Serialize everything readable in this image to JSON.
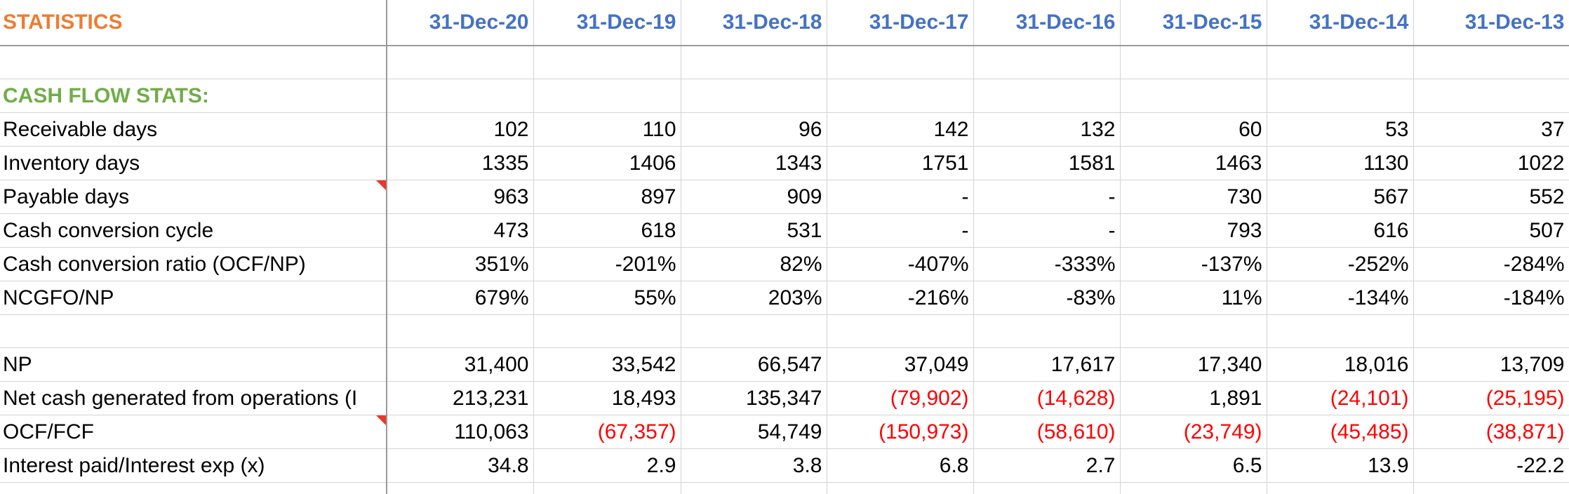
{
  "sheet": {
    "title": "STATISTICS",
    "dates": [
      "31-Dec-20",
      "31-Dec-19",
      "31-Dec-18",
      "31-Dec-17",
      "31-Dec-16",
      "31-Dec-15",
      "31-Dec-14",
      "31-Dec-13"
    ],
    "section_title": "CASH FLOW STATS:",
    "rows": [
      {
        "label": "Receivable days",
        "values": [
          "102",
          "110",
          "96",
          "142",
          "132",
          "60",
          "53",
          "37"
        ]
      },
      {
        "label": "Inventory days",
        "values": [
          "1335",
          "1406",
          "1343",
          "1751",
          "1581",
          "1463",
          "1130",
          "1022"
        ]
      },
      {
        "label": "Payable days",
        "values": [
          "963",
          "897",
          "909",
          "-",
          "-",
          "730",
          "567",
          "552"
        ]
      },
      {
        "label": "Cash conversion cycle",
        "values": [
          "473",
          "618",
          "531",
          "-",
          "-",
          "793",
          "616",
          "507"
        ]
      },
      {
        "label": "Cash conversion ratio (OCF/NP)",
        "values": [
          "351%",
          "-201%",
          "82%",
          "-407%",
          "-333%",
          "-137%",
          "-252%",
          "-284%"
        ]
      },
      {
        "label": "NCGFO/NP",
        "values": [
          "679%",
          "55%",
          "203%",
          "-216%",
          "-83%",
          "11%",
          "-134%",
          "-184%"
        ]
      },
      {
        "label": "NP",
        "values": [
          "31,400",
          "33,542",
          "66,547",
          "37,049",
          "17,617",
          "17,340",
          "18,016",
          "13,709"
        ]
      },
      {
        "label": "Net cash generated from operations (I",
        "values": [
          "213,231",
          "18,493",
          "135,347",
          "(79,902)",
          "(14,628)",
          "1,891",
          "(24,101)",
          "(25,195)"
        ]
      },
      {
        "label": "OCF/FCF",
        "values": [
          "110,063",
          "(67,357)",
          "54,749",
          "(150,973)",
          "(58,610)",
          "(23,749)",
          "(45,485)",
          "(38,871)"
        ]
      },
      {
        "label": "Interest paid/Interest exp (x)",
        "values": [
          "34.8",
          "2.9",
          "3.8",
          "6.8",
          "2.7",
          "6.5",
          "13.9",
          "-22.2"
        ]
      }
    ],
    "colors": {
      "title": "#ed7d31",
      "section": "#70ad47",
      "date_header": "#4472c4",
      "negative": "#ff0000",
      "comment_flag": "#e8382b"
    }
  }
}
